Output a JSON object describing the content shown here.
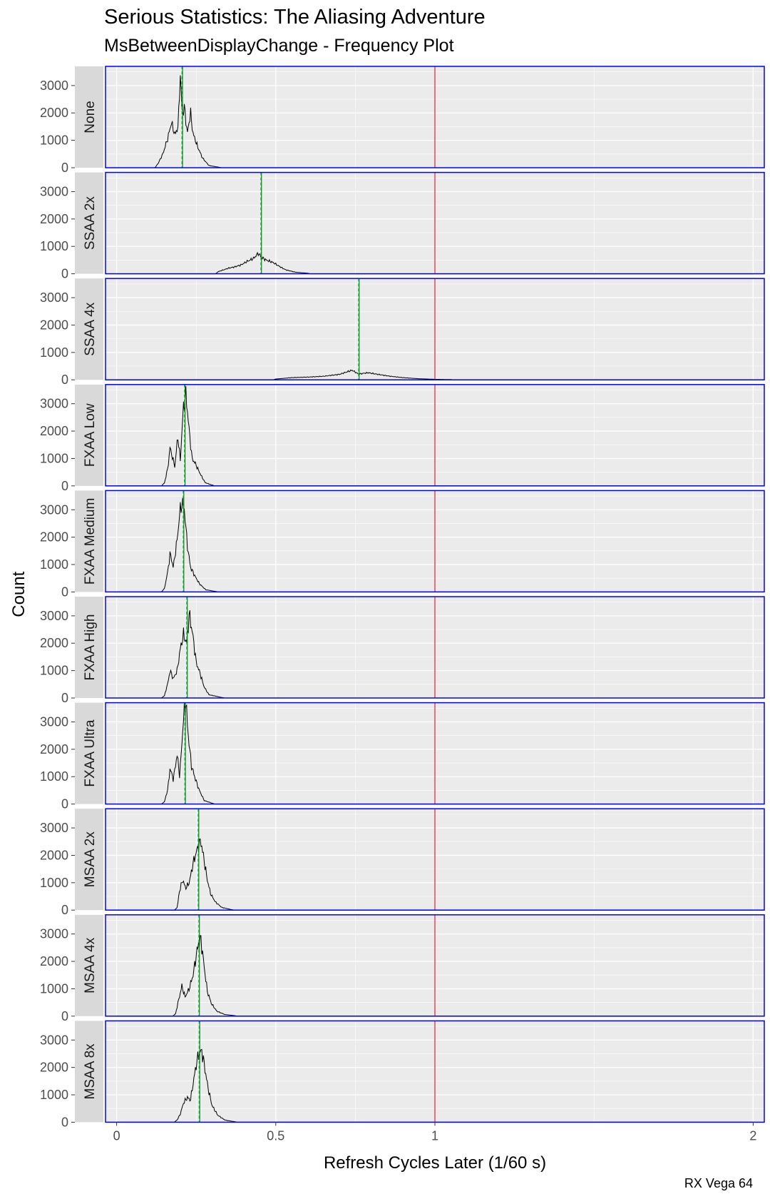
{
  "chart_data": {
    "type": "line",
    "title": "Serious Statistics: The Aliasing Adventure",
    "subtitle": "MsBetweenDisplayChange - Frequency Plot",
    "xlabel": "Refresh Cycles Later (1/60 s)",
    "ylabel": "Count",
    "caption": "RX Vega 64",
    "xlim": [
      -0.035,
      2.035
    ],
    "ylim": [
      0,
      3700
    ],
    "x_ticks": [
      0,
      0.5,
      1,
      2
    ],
    "x_tick_labels": [
      "0",
      "0.5",
      "1",
      "2"
    ],
    "y_ticks": [
      0,
      1000,
      2000,
      3000
    ],
    "y_tick_labels": [
      "0",
      "1000",
      "2000",
      "3000"
    ],
    "reference_line": {
      "x": 1,
      "color": "#e8172c"
    },
    "colors": {
      "panel_bg": "#ebebeb",
      "strip_bg": "#d9d9d9",
      "panel_border": "#0000ff",
      "line": "#000000",
      "mean_line": "#008a00",
      "median_line": "#00b050",
      "grid": "#ffffff"
    },
    "panels": [
      {
        "label": "None",
        "mean": 0.207,
        "median": 0.205,
        "peaks": [
          [
            0.13,
            150
          ],
          [
            0.145,
            500
          ],
          [
            0.16,
            1050
          ],
          [
            0.172,
            1650
          ],
          [
            0.183,
            1200
          ],
          [
            0.193,
            1500
          ],
          [
            0.2,
            3400
          ],
          [
            0.206,
            1950
          ],
          [
            0.213,
            2200
          ],
          [
            0.222,
            1250
          ],
          [
            0.232,
            2000
          ],
          [
            0.24,
            1250
          ],
          [
            0.255,
            750
          ],
          [
            0.27,
            350
          ],
          [
            0.29,
            80
          ],
          [
            0.32,
            20
          ]
        ]
      },
      {
        "label": "SSAA 2x",
        "mean": 0.455,
        "median": 0.453,
        "peaks": [
          [
            0.32,
            80
          ],
          [
            0.35,
            200
          ],
          [
            0.37,
            250
          ],
          [
            0.39,
            320
          ],
          [
            0.41,
            450
          ],
          [
            0.43,
            560
          ],
          [
            0.445,
            750
          ],
          [
            0.455,
            600
          ],
          [
            0.47,
            500
          ],
          [
            0.49,
            420
          ],
          [
            0.51,
            280
          ],
          [
            0.53,
            150
          ],
          [
            0.56,
            60
          ],
          [
            0.6,
            20
          ]
        ]
      },
      {
        "label": "SSAA 4x",
        "mean": 0.762,
        "median": 0.76,
        "peaks": [
          [
            0.5,
            30
          ],
          [
            0.55,
            80
          ],
          [
            0.6,
            100
          ],
          [
            0.65,
            130
          ],
          [
            0.7,
            200
          ],
          [
            0.74,
            350
          ],
          [
            0.76,
            210
          ],
          [
            0.79,
            260
          ],
          [
            0.82,
            200
          ],
          [
            0.86,
            130
          ],
          [
            0.9,
            80
          ],
          [
            0.95,
            40
          ],
          [
            1.0,
            20
          ],
          [
            1.05,
            10
          ]
        ]
      },
      {
        "label": "FXAA Low",
        "mean": 0.215,
        "median": 0.213,
        "peaks": [
          [
            0.15,
            100
          ],
          [
            0.16,
            600
          ],
          [
            0.168,
            1400
          ],
          [
            0.175,
            1050
          ],
          [
            0.183,
            700
          ],
          [
            0.192,
            1800
          ],
          [
            0.2,
            950
          ],
          [
            0.21,
            2900
          ],
          [
            0.218,
            3350
          ],
          [
            0.227,
            2100
          ],
          [
            0.237,
            1000
          ],
          [
            0.248,
            800
          ],
          [
            0.262,
            450
          ],
          [
            0.278,
            120
          ],
          [
            0.3,
            30
          ]
        ]
      },
      {
        "label": "FXAA Medium",
        "mean": 0.211,
        "median": 0.209,
        "peaks": [
          [
            0.15,
            120
          ],
          [
            0.16,
            700
          ],
          [
            0.168,
            1400
          ],
          [
            0.178,
            900
          ],
          [
            0.19,
            1900
          ],
          [
            0.198,
            2850
          ],
          [
            0.205,
            3250
          ],
          [
            0.213,
            3000
          ],
          [
            0.222,
            1700
          ],
          [
            0.232,
            900
          ],
          [
            0.245,
            600
          ],
          [
            0.26,
            300
          ],
          [
            0.28,
            80
          ],
          [
            0.31,
            20
          ]
        ]
      },
      {
        "label": "FXAA High",
        "mean": 0.222,
        "median": 0.22,
        "peaks": [
          [
            0.15,
            80
          ],
          [
            0.16,
            500
          ],
          [
            0.168,
            1000
          ],
          [
            0.178,
            700
          ],
          [
            0.19,
            1000
          ],
          [
            0.2,
            1800
          ],
          [
            0.21,
            2300
          ],
          [
            0.22,
            2000
          ],
          [
            0.228,
            3050
          ],
          [
            0.238,
            2400
          ],
          [
            0.25,
            1300
          ],
          [
            0.262,
            900
          ],
          [
            0.275,
            400
          ],
          [
            0.29,
            120
          ],
          [
            0.33,
            20
          ]
        ]
      },
      {
        "label": "FXAA Ultra",
        "mean": 0.216,
        "median": 0.214,
        "peaks": [
          [
            0.15,
            80
          ],
          [
            0.16,
            500
          ],
          [
            0.168,
            1300
          ],
          [
            0.178,
            900
          ],
          [
            0.19,
            1800
          ],
          [
            0.198,
            1000
          ],
          [
            0.21,
            3100
          ],
          [
            0.217,
            3800
          ],
          [
            0.225,
            2500
          ],
          [
            0.235,
            1400
          ],
          [
            0.245,
            1000
          ],
          [
            0.258,
            550
          ],
          [
            0.275,
            130
          ],
          [
            0.3,
            30
          ]
        ]
      },
      {
        "label": "MSAA 2x",
        "mean": 0.258,
        "median": 0.256,
        "peaks": [
          [
            0.19,
            80
          ],
          [
            0.198,
            700
          ],
          [
            0.207,
            1100
          ],
          [
            0.217,
            800
          ],
          [
            0.228,
            1000
          ],
          [
            0.24,
            1700
          ],
          [
            0.25,
            2100
          ],
          [
            0.258,
            2400
          ],
          [
            0.265,
            2500
          ],
          [
            0.275,
            1800
          ],
          [
            0.285,
            1100
          ],
          [
            0.295,
            600
          ],
          [
            0.31,
            300
          ],
          [
            0.33,
            100
          ],
          [
            0.36,
            20
          ]
        ]
      },
      {
        "label": "MSAA 4x",
        "mean": 0.26,
        "median": 0.258,
        "peaks": [
          [
            0.185,
            80
          ],
          [
            0.195,
            600
          ],
          [
            0.205,
            1100
          ],
          [
            0.215,
            700
          ],
          [
            0.228,
            1000
          ],
          [
            0.24,
            1500
          ],
          [
            0.25,
            2200
          ],
          [
            0.258,
            2700
          ],
          [
            0.265,
            2800
          ],
          [
            0.275,
            1800
          ],
          [
            0.285,
            900
          ],
          [
            0.298,
            450
          ],
          [
            0.315,
            180
          ],
          [
            0.34,
            60
          ],
          [
            0.37,
            20
          ]
        ]
      },
      {
        "label": "MSAA 8x",
        "mean": 0.261,
        "median": 0.259,
        "peaks": [
          [
            0.19,
            80
          ],
          [
            0.2,
            300
          ],
          [
            0.21,
            700
          ],
          [
            0.222,
            900
          ],
          [
            0.232,
            800
          ],
          [
            0.24,
            1400
          ],
          [
            0.25,
            2100
          ],
          [
            0.258,
            2500
          ],
          [
            0.268,
            2600
          ],
          [
            0.278,
            1900
          ],
          [
            0.288,
            1200
          ],
          [
            0.3,
            600
          ],
          [
            0.318,
            250
          ],
          [
            0.34,
            80
          ],
          [
            0.37,
            20
          ]
        ]
      }
    ]
  }
}
